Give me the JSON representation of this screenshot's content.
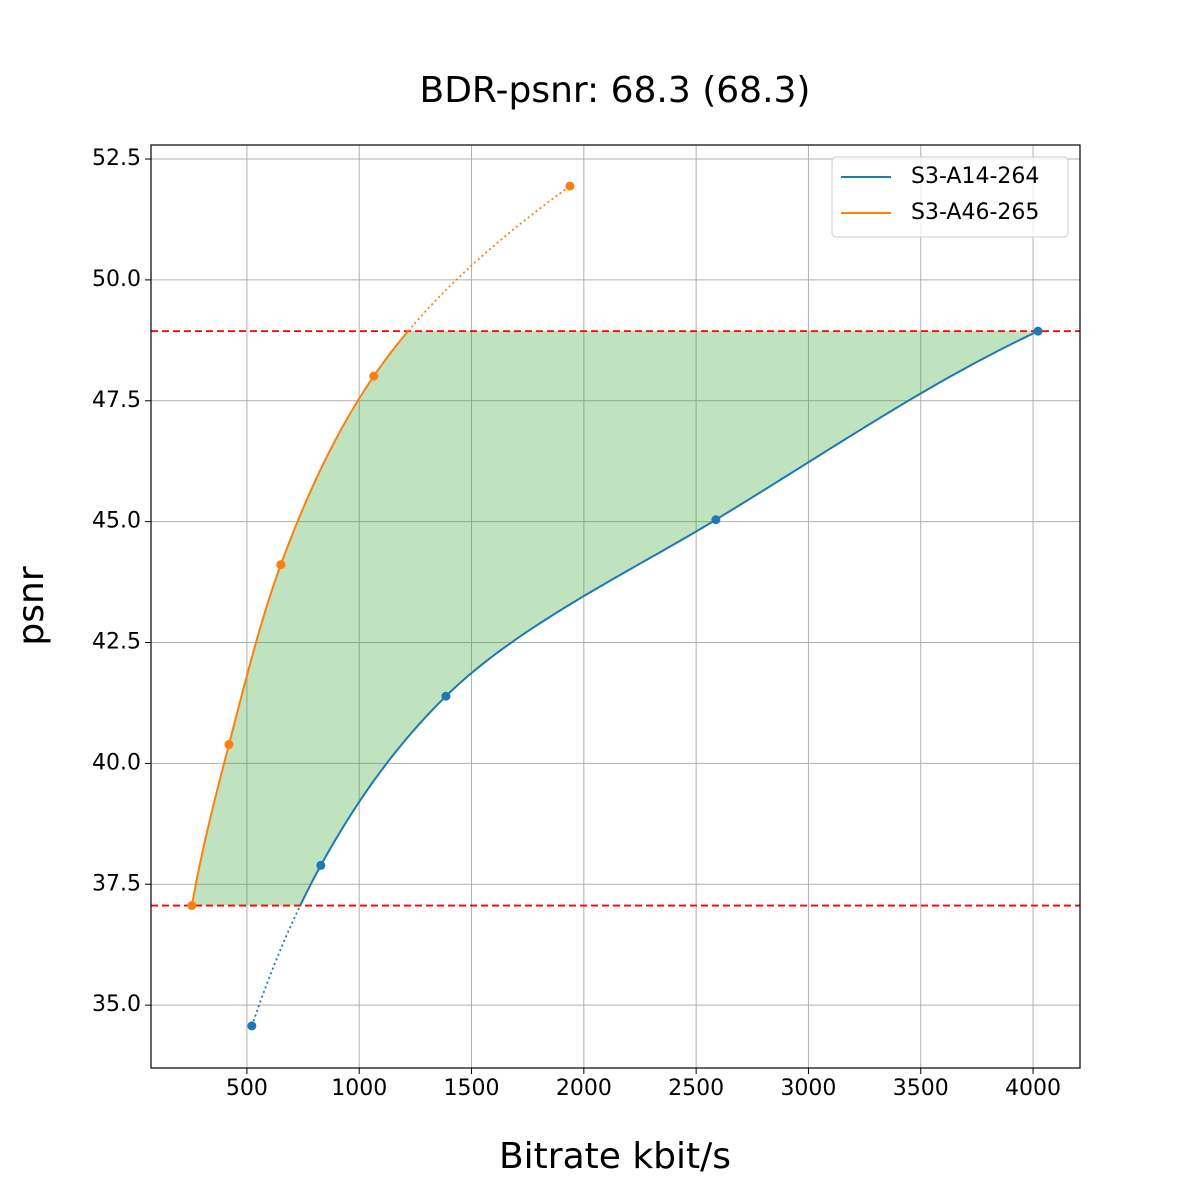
{
  "chart_data": {
    "type": "line",
    "title": "BDR-psnr: 68.3 (68.3)",
    "x_label": "Bitrate kbit/s",
    "y_label": "psnr",
    "series": [
      {
        "name": "S3-A14-264",
        "color": "#1f77b4",
        "x": [
          522,
          829,
          1386,
          2588,
          4022
        ],
        "values": [
          34.57,
          37.89,
          41.39,
          45.04,
          48.94
        ]
      },
      {
        "name": "S3-A46-265",
        "color": "#ff7f0e",
        "x": [
          255,
          420,
          651,
          1065,
          1938
        ],
        "values": [
          37.06,
          40.39,
          44.11,
          48.01,
          51.94
        ]
      }
    ],
    "fill_color": "#2ca02c",
    "overlap_line_color": "#ff0000",
    "xlim": [
      73,
      4209
    ],
    "ylim": [
      33.7,
      52.79
    ],
    "xticks": [
      500,
      1000,
      1500,
      2000,
      2500,
      3000,
      3500,
      4000
    ],
    "yticks": [
      {
        "value": 35,
        "label": "35.0"
      },
      37.5,
      {
        "value": 40,
        "label": "40.0"
      },
      42.5,
      {
        "value": 45,
        "label": "45.0"
      },
      47.5,
      {
        "value": 50,
        "label": "50.0"
      },
      52.5
    ],
    "grid": true,
    "legend": "upper right"
  }
}
